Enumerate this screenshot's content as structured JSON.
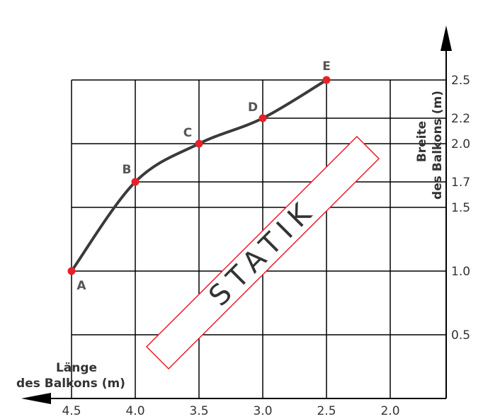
{
  "chart_data": {
    "type": "line",
    "title": "",
    "xlabel_line1": "Länge",
    "xlabel_line2": "des Balkons (m)",
    "ylabel_line1": "Breite",
    "ylabel_line2": "des Balkons (m)",
    "x_axis_reversed": true,
    "xlim": [
      4.5,
      2.0
    ],
    "ylim": [
      0,
      2.5
    ],
    "x_ticks": [
      "4.5",
      "4.0",
      "3.5",
      "3.0",
      "2.5",
      "2.0"
    ],
    "y_ticks": [
      "0.5",
      "1.0",
      "1.5",
      "1.7",
      "2.0",
      "2.2",
      "2.5"
    ],
    "grid": true,
    "points": [
      {
        "label": "A",
        "x": 4.5,
        "y": 1.0
      },
      {
        "label": "B",
        "x": 4.0,
        "y": 1.7
      },
      {
        "label": "C",
        "x": 3.5,
        "y": 2.0
      },
      {
        "label": "D",
        "x": 3.0,
        "y": 2.2
      },
      {
        "label": "E",
        "x": 2.5,
        "y": 2.5
      }
    ],
    "watermark": "STATIK",
    "colors": {
      "line": "#3a3a3a",
      "point": "#e8202a",
      "grid": "#000000",
      "watermark_border": "#e8202a"
    }
  }
}
